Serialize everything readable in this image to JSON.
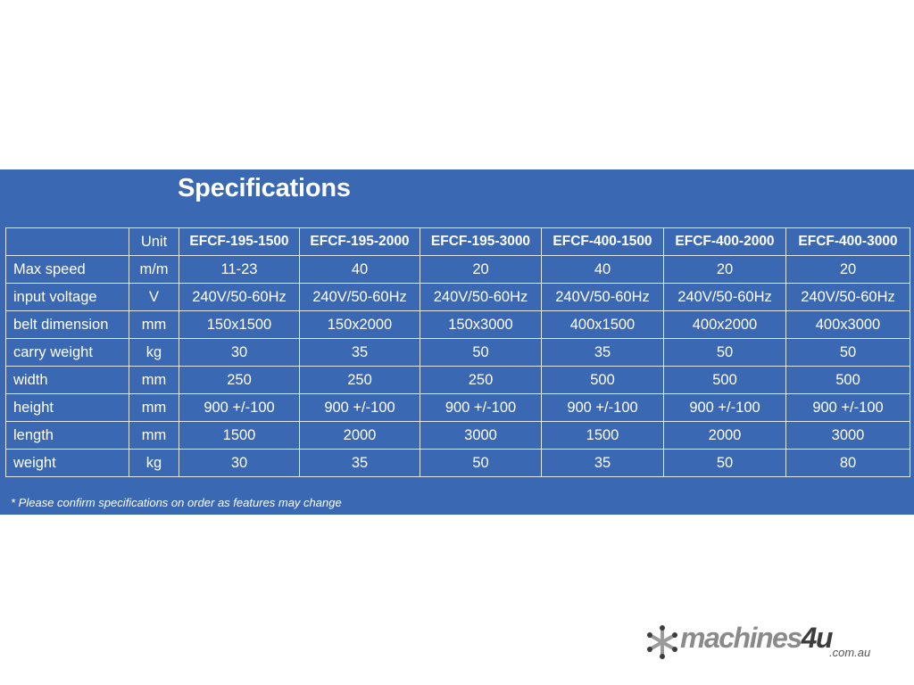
{
  "title": "Specifications",
  "table": {
    "unit_header": "Unit",
    "models": [
      "EFCF-195-1500",
      "EFCF-195-2000",
      "EFCF-195-3000",
      "EFCF-400-1500",
      "EFCF-400-2000",
      "EFCF-400-3000"
    ],
    "rows": [
      {
        "label": "Max speed",
        "unit": "m/m",
        "values": [
          "11-23",
          "40",
          "20",
          "40",
          "20",
          "20"
        ]
      },
      {
        "label": "input voltage",
        "unit": "V",
        "values": [
          "240V/50-60Hz",
          "240V/50-60Hz",
          "240V/50-60Hz",
          "240V/50-60Hz",
          "240V/50-60Hz",
          "240V/50-60Hz"
        ]
      },
      {
        "label": "belt dimension",
        "unit": "mm",
        "values": [
          "150x1500",
          "150x2000",
          "150x3000",
          "400x1500",
          "400x2000",
          "400x3000"
        ]
      },
      {
        "label": "carry weight",
        "unit": "kg",
        "values": [
          "30",
          "35",
          "50",
          "35",
          "50",
          "50"
        ]
      },
      {
        "label": "width",
        "unit": "mm",
        "values": [
          "250",
          "250",
          "250",
          "500",
          "500",
          "500"
        ]
      },
      {
        "label": "height",
        "unit": "mm",
        "values": [
          "900 +/-100",
          "900 +/-100",
          "900 +/-100",
          "900 +/-100",
          "900 +/-100",
          "900 +/-100"
        ]
      },
      {
        "label": "length",
        "unit": "mm",
        "values": [
          "1500",
          "2000",
          "3000",
          "1500",
          "2000",
          "3000"
        ]
      },
      {
        "label": "weight",
        "unit": "kg",
        "values": [
          "30",
          "35",
          "50",
          "35",
          "50",
          "80"
        ]
      }
    ]
  },
  "note": "* Please confirm specifications on order as features may change",
  "logo": {
    "text": "machines",
    "number": "4u",
    "sub": ".com.au",
    "icon": "snowflake-star-icon"
  },
  "colors": {
    "panel": "#3b68b3",
    "text": "#ffffff",
    "logo_grey": "#8a8a8a",
    "logo_dark": "#3d3d3d"
  }
}
